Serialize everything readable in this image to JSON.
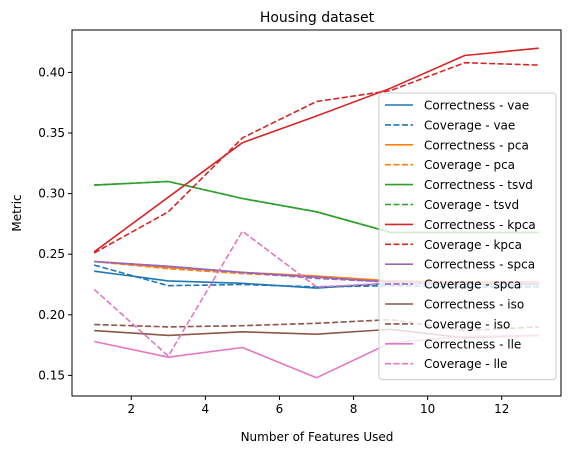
{
  "chart_data": {
    "type": "line",
    "title": "Housing dataset",
    "xlabel": "Number of Features Used",
    "ylabel": "Metric",
    "xlim": [
      0.4,
      13.6
    ],
    "ylim": [
      0.133,
      0.435
    ],
    "x_ticks": [
      2,
      4,
      6,
      8,
      10,
      12
    ],
    "y_ticks": [
      0.15,
      0.2,
      0.25,
      0.3,
      0.35,
      0.4
    ],
    "x_tick_labels": [
      "2",
      "4",
      "6",
      "8",
      "10",
      "12"
    ],
    "y_tick_labels": [
      "0.15",
      "0.20",
      "0.25",
      "0.30",
      "0.35",
      "0.40"
    ],
    "grid": false,
    "legend_position": "right",
    "x": [
      1,
      3,
      5,
      7,
      9,
      11,
      13
    ],
    "series": [
      {
        "name": "Correctness - vae",
        "color": "#1f77b4",
        "dash": "solid",
        "values": [
          0.236,
          0.228,
          0.226,
          0.222,
          0.226,
          0.225,
          0.225
        ]
      },
      {
        "name": "Coverage - vae",
        "color": "#1f77b4",
        "dash": "dashed",
        "values": [
          0.241,
          0.224,
          0.225,
          0.223,
          0.224,
          0.223,
          0.223
        ]
      },
      {
        "name": "Correctness - pca",
        "color": "#ff7f0e",
        "dash": "solid",
        "values": [
          0.244,
          0.239,
          0.235,
          0.232,
          0.228,
          0.227,
          0.227
        ]
      },
      {
        "name": "Coverage - pca",
        "color": "#ff7f0e",
        "dash": "dashed",
        "values": [
          0.244,
          0.238,
          0.234,
          0.231,
          0.228,
          0.227,
          0.227
        ]
      },
      {
        "name": "Correctness - tsvd",
        "color": "#2ca02c",
        "dash": "solid",
        "values": [
          0.307,
          0.31,
          0.296,
          0.285,
          0.268,
          0.268,
          0.268
        ]
      },
      {
        "name": "Coverage - tsvd",
        "color": "#2ca02c",
        "dash": "dashed",
        "values": [
          0.307,
          0.31,
          0.296,
          0.285,
          0.268,
          0.268,
          0.268
        ]
      },
      {
        "name": "Correctness - kpca",
        "color": "#d62728",
        "dash": "solid",
        "values": [
          0.252,
          0.297,
          0.342,
          0.364,
          0.387,
          0.414,
          0.42
        ]
      },
      {
        "name": "Coverage - kpca",
        "color": "#d62728",
        "dash": "dashed",
        "values": [
          0.251,
          0.285,
          0.346,
          0.376,
          0.385,
          0.408,
          0.406
        ]
      },
      {
        "name": "Correctness - spca",
        "color": "#9467bd",
        "dash": "solid",
        "values": [
          0.244,
          0.24,
          0.235,
          0.231,
          0.227,
          0.226,
          0.226
        ]
      },
      {
        "name": "Coverage - spca",
        "color": "#9467bd",
        "dash": "dashed",
        "values": [
          0.244,
          0.24,
          0.235,
          0.23,
          0.227,
          0.226,
          0.226
        ]
      },
      {
        "name": "Correctness - iso",
        "color": "#8c564b",
        "dash": "solid",
        "values": [
          0.187,
          0.183,
          0.186,
          0.184,
          0.188,
          0.181,
          0.183
        ]
      },
      {
        "name": "Coverage - iso",
        "color": "#8c564b",
        "dash": "dashed",
        "values": [
          0.192,
          0.19,
          0.191,
          0.193,
          0.196,
          0.187,
          0.19
        ]
      },
      {
        "name": "Correctness - lle",
        "color": "#e377c2",
        "dash": "solid",
        "values": [
          0.178,
          0.165,
          0.173,
          0.148,
          0.177,
          0.182,
          0.183
        ]
      },
      {
        "name": "Coverage - lle",
        "color": "#e377c2",
        "dash": "dashed",
        "values": [
          0.221,
          0.166,
          0.269,
          0.223,
          0.226,
          0.226,
          0.226
        ]
      }
    ]
  }
}
